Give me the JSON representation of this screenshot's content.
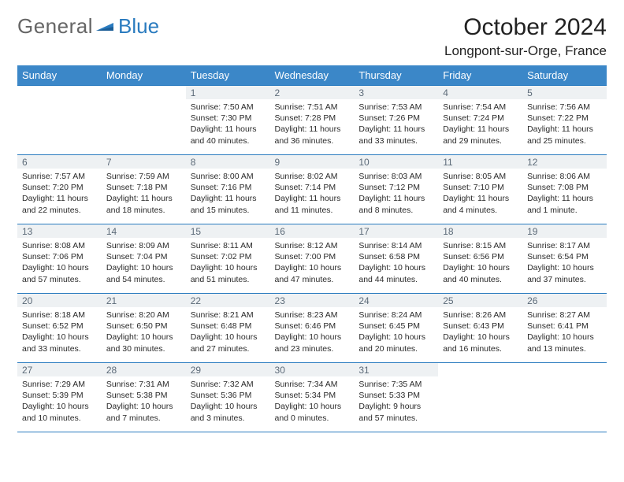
{
  "logo": {
    "general": "General",
    "blue": "Blue"
  },
  "colors": {
    "accent": "#3b87c8",
    "rule": "#2a7bbf",
    "daybg": "#eef1f3",
    "daytext": "#5c6a78"
  },
  "header": {
    "month_title": "October 2024",
    "location": "Longpont-sur-Orge, France"
  },
  "weekdays": [
    "Sunday",
    "Monday",
    "Tuesday",
    "Wednesday",
    "Thursday",
    "Friday",
    "Saturday"
  ],
  "weeks": [
    [
      {
        "n": "",
        "sr": "",
        "ss": "",
        "dl": ""
      },
      {
        "n": "",
        "sr": "",
        "ss": "",
        "dl": ""
      },
      {
        "n": "1",
        "sr": "Sunrise: 7:50 AM",
        "ss": "Sunset: 7:30 PM",
        "dl": "Daylight: 11 hours and 40 minutes."
      },
      {
        "n": "2",
        "sr": "Sunrise: 7:51 AM",
        "ss": "Sunset: 7:28 PM",
        "dl": "Daylight: 11 hours and 36 minutes."
      },
      {
        "n": "3",
        "sr": "Sunrise: 7:53 AM",
        "ss": "Sunset: 7:26 PM",
        "dl": "Daylight: 11 hours and 33 minutes."
      },
      {
        "n": "4",
        "sr": "Sunrise: 7:54 AM",
        "ss": "Sunset: 7:24 PM",
        "dl": "Daylight: 11 hours and 29 minutes."
      },
      {
        "n": "5",
        "sr": "Sunrise: 7:56 AM",
        "ss": "Sunset: 7:22 PM",
        "dl": "Daylight: 11 hours and 25 minutes."
      }
    ],
    [
      {
        "n": "6",
        "sr": "Sunrise: 7:57 AM",
        "ss": "Sunset: 7:20 PM",
        "dl": "Daylight: 11 hours and 22 minutes."
      },
      {
        "n": "7",
        "sr": "Sunrise: 7:59 AM",
        "ss": "Sunset: 7:18 PM",
        "dl": "Daylight: 11 hours and 18 minutes."
      },
      {
        "n": "8",
        "sr": "Sunrise: 8:00 AM",
        "ss": "Sunset: 7:16 PM",
        "dl": "Daylight: 11 hours and 15 minutes."
      },
      {
        "n": "9",
        "sr": "Sunrise: 8:02 AM",
        "ss": "Sunset: 7:14 PM",
        "dl": "Daylight: 11 hours and 11 minutes."
      },
      {
        "n": "10",
        "sr": "Sunrise: 8:03 AM",
        "ss": "Sunset: 7:12 PM",
        "dl": "Daylight: 11 hours and 8 minutes."
      },
      {
        "n": "11",
        "sr": "Sunrise: 8:05 AM",
        "ss": "Sunset: 7:10 PM",
        "dl": "Daylight: 11 hours and 4 minutes."
      },
      {
        "n": "12",
        "sr": "Sunrise: 8:06 AM",
        "ss": "Sunset: 7:08 PM",
        "dl": "Daylight: 11 hours and 1 minute."
      }
    ],
    [
      {
        "n": "13",
        "sr": "Sunrise: 8:08 AM",
        "ss": "Sunset: 7:06 PM",
        "dl": "Daylight: 10 hours and 57 minutes."
      },
      {
        "n": "14",
        "sr": "Sunrise: 8:09 AM",
        "ss": "Sunset: 7:04 PM",
        "dl": "Daylight: 10 hours and 54 minutes."
      },
      {
        "n": "15",
        "sr": "Sunrise: 8:11 AM",
        "ss": "Sunset: 7:02 PM",
        "dl": "Daylight: 10 hours and 51 minutes."
      },
      {
        "n": "16",
        "sr": "Sunrise: 8:12 AM",
        "ss": "Sunset: 7:00 PM",
        "dl": "Daylight: 10 hours and 47 minutes."
      },
      {
        "n": "17",
        "sr": "Sunrise: 8:14 AM",
        "ss": "Sunset: 6:58 PM",
        "dl": "Daylight: 10 hours and 44 minutes."
      },
      {
        "n": "18",
        "sr": "Sunrise: 8:15 AM",
        "ss": "Sunset: 6:56 PM",
        "dl": "Daylight: 10 hours and 40 minutes."
      },
      {
        "n": "19",
        "sr": "Sunrise: 8:17 AM",
        "ss": "Sunset: 6:54 PM",
        "dl": "Daylight: 10 hours and 37 minutes."
      }
    ],
    [
      {
        "n": "20",
        "sr": "Sunrise: 8:18 AM",
        "ss": "Sunset: 6:52 PM",
        "dl": "Daylight: 10 hours and 33 minutes."
      },
      {
        "n": "21",
        "sr": "Sunrise: 8:20 AM",
        "ss": "Sunset: 6:50 PM",
        "dl": "Daylight: 10 hours and 30 minutes."
      },
      {
        "n": "22",
        "sr": "Sunrise: 8:21 AM",
        "ss": "Sunset: 6:48 PM",
        "dl": "Daylight: 10 hours and 27 minutes."
      },
      {
        "n": "23",
        "sr": "Sunrise: 8:23 AM",
        "ss": "Sunset: 6:46 PM",
        "dl": "Daylight: 10 hours and 23 minutes."
      },
      {
        "n": "24",
        "sr": "Sunrise: 8:24 AM",
        "ss": "Sunset: 6:45 PM",
        "dl": "Daylight: 10 hours and 20 minutes."
      },
      {
        "n": "25",
        "sr": "Sunrise: 8:26 AM",
        "ss": "Sunset: 6:43 PM",
        "dl": "Daylight: 10 hours and 16 minutes."
      },
      {
        "n": "26",
        "sr": "Sunrise: 8:27 AM",
        "ss": "Sunset: 6:41 PM",
        "dl": "Daylight: 10 hours and 13 minutes."
      }
    ],
    [
      {
        "n": "27",
        "sr": "Sunrise: 7:29 AM",
        "ss": "Sunset: 5:39 PM",
        "dl": "Daylight: 10 hours and 10 minutes."
      },
      {
        "n": "28",
        "sr": "Sunrise: 7:31 AM",
        "ss": "Sunset: 5:38 PM",
        "dl": "Daylight: 10 hours and 7 minutes."
      },
      {
        "n": "29",
        "sr": "Sunrise: 7:32 AM",
        "ss": "Sunset: 5:36 PM",
        "dl": "Daylight: 10 hours and 3 minutes."
      },
      {
        "n": "30",
        "sr": "Sunrise: 7:34 AM",
        "ss": "Sunset: 5:34 PM",
        "dl": "Daylight: 10 hours and 0 minutes."
      },
      {
        "n": "31",
        "sr": "Sunrise: 7:35 AM",
        "ss": "Sunset: 5:33 PM",
        "dl": "Daylight: 9 hours and 57 minutes."
      },
      {
        "n": "",
        "sr": "",
        "ss": "",
        "dl": ""
      },
      {
        "n": "",
        "sr": "",
        "ss": "",
        "dl": ""
      }
    ]
  ]
}
